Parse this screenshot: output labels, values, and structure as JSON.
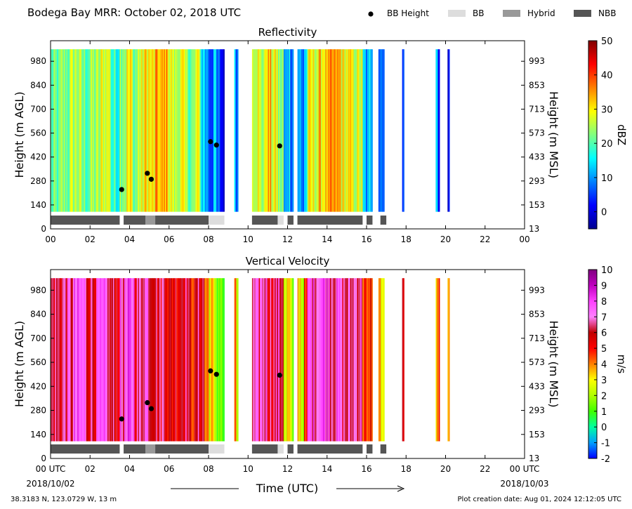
{
  "figure": {
    "title": "Bodega Bay MRR:  October 02, 2018 UTC",
    "legend": [
      {
        "label": "BB Height",
        "kind": "dot",
        "color": "#000000"
      },
      {
        "label": "BB",
        "kind": "box",
        "color": "#dddddd"
      },
      {
        "label": "Hybrid",
        "kind": "box",
        "color": "#999999"
      },
      {
        "label": "NBB",
        "kind": "box",
        "color": "#555555"
      }
    ],
    "xlabel": "Time (UTC)",
    "start_date": "2018/10/02",
    "end_date": "2018/10/03",
    "location": "38.3183 N, 123.0729 W, 13 m",
    "creation": "Plot creation date: Aug 01, 2024 12:12:05 UTC"
  },
  "chart_data": [
    {
      "type": "heatmap",
      "title": "Reflectivity",
      "ylabel": "Height (m AGL)",
      "ylabel_right": "Height (m MSL)",
      "xlim": [
        0,
        24
      ],
      "ylim": [
        0,
        1100
      ],
      "x_ticks": [
        "00",
        "02",
        "04",
        "06",
        "08",
        "10",
        "12",
        "14",
        "16",
        "18",
        "20",
        "22",
        "00"
      ],
      "y_ticks": [
        0,
        140,
        280,
        420,
        560,
        700,
        840,
        980
      ],
      "y_ticks_right": [
        "13",
        "153",
        "293",
        "433",
        "573",
        "713",
        "853",
        "993"
      ],
      "colorbar": {
        "label": "dBZ",
        "range": [
          -5,
          50
        ],
        "ticks": [
          "0",
          "10",
          "20",
          "30",
          "40",
          "50"
        ],
        "tick_values": [
          0,
          10,
          20,
          30,
          40,
          50
        ],
        "colors": [
          "#00008f",
          "#0000ff",
          "#0080ff",
          "#00ffff",
          "#80ff80",
          "#ffff00",
          "#ff8000",
          "#ff0000",
          "#800000"
        ]
      },
      "data_segments": [
        {
          "start": 0.0,
          "end": 3.5,
          "levels": [
            0.45,
            0.5,
            0.55,
            0.48,
            0.52,
            0.6,
            0.42
          ]
        },
        {
          "start": 3.5,
          "end": 5.0,
          "levels": [
            0.55,
            0.62,
            0.5,
            0.58,
            0.65
          ]
        },
        {
          "start": 5.0,
          "end": 6.2,
          "levels": [
            0.62,
            0.7,
            0.66,
            0.72,
            0.6
          ]
        },
        {
          "start": 6.2,
          "end": 7.6,
          "levels": [
            0.55,
            0.6,
            0.52,
            0.48,
            0.58
          ]
        },
        {
          "start": 7.6,
          "end": 8.8,
          "levels": [
            0.35,
            0.28,
            0.22,
            0.3,
            0.18,
            0.12
          ]
        },
        {
          "start": 9.3,
          "end": 9.5,
          "levels": [
            0.3,
            0.25
          ]
        },
        {
          "start": 10.2,
          "end": 11.8,
          "levels": [
            0.62,
            0.55,
            0.68,
            0.6,
            0.5
          ]
        },
        {
          "start": 11.8,
          "end": 12.3,
          "levels": [
            0.25,
            0.35,
            0.28
          ]
        },
        {
          "start": 12.5,
          "end": 13.0,
          "levels": [
            0.3,
            0.22,
            0.35
          ]
        },
        {
          "start": 13.0,
          "end": 15.8,
          "levels": [
            0.6,
            0.66,
            0.7,
            0.62,
            0.58
          ]
        },
        {
          "start": 15.8,
          "end": 16.3,
          "levels": [
            0.3,
            0.25,
            0.35
          ]
        },
        {
          "start": 16.6,
          "end": 16.9,
          "levels": [
            0.28,
            0.22
          ]
        },
        {
          "start": 17.8,
          "end": 17.9,
          "levels": [
            0.25
          ]
        },
        {
          "start": 19.5,
          "end": 19.7,
          "levels": [
            0.3,
            0.2
          ]
        },
        {
          "start": 20.1,
          "end": 20.2,
          "levels": [
            0.1
          ]
        }
      ],
      "bb_points": [
        {
          "x": 3.6,
          "y": 230
        },
        {
          "x": 4.9,
          "y": 325
        },
        {
          "x": 5.1,
          "y": 290
        },
        {
          "x": 8.1,
          "y": 510
        },
        {
          "x": 8.4,
          "y": 490
        },
        {
          "x": 11.6,
          "y": 485
        }
      ],
      "bb_bars": [
        {
          "start": 0.0,
          "end": 3.5,
          "type": "NBB"
        },
        {
          "start": 3.7,
          "end": 4.8,
          "type": "NBB"
        },
        {
          "start": 4.8,
          "end": 5.3,
          "type": "Hybrid"
        },
        {
          "start": 5.3,
          "end": 8.0,
          "type": "NBB"
        },
        {
          "start": 8.0,
          "end": 8.8,
          "type": "BB"
        },
        {
          "start": 10.2,
          "end": 11.5,
          "type": "NBB"
        },
        {
          "start": 11.5,
          "end": 11.8,
          "type": "BB"
        },
        {
          "start": 12.0,
          "end": 12.3,
          "type": "NBB"
        },
        {
          "start": 12.5,
          "end": 15.8,
          "type": "NBB"
        },
        {
          "start": 16.0,
          "end": 16.3,
          "type": "NBB"
        },
        {
          "start": 16.7,
          "end": 17.0,
          "type": "NBB"
        }
      ]
    },
    {
      "type": "heatmap",
      "title": "Vertical Velocity",
      "ylabel": "Height (m AGL)",
      "ylabel_right": "Height (m MSL)",
      "xlim": [
        0,
        24
      ],
      "ylim": [
        0,
        1100
      ],
      "x_ticks": [
        "00 UTC",
        "02",
        "04",
        "06",
        "08",
        "10",
        "12",
        "14",
        "16",
        "18",
        "20",
        "22",
        "00 UTC"
      ],
      "y_ticks": [
        0,
        140,
        280,
        420,
        560,
        700,
        840,
        980
      ],
      "y_ticks_right": [
        "13",
        "153",
        "293",
        "433",
        "573",
        "713",
        "853",
        "993"
      ],
      "colorbar": {
        "label": "m/s",
        "range": [
          -2,
          10
        ],
        "ticks": [
          "-2",
          "-1",
          "0",
          "1",
          "2",
          "3",
          "4",
          "5",
          "6",
          "7",
          "8",
          "9",
          "10"
        ],
        "tick_values": [
          -2,
          -1,
          0,
          1,
          2,
          3,
          4,
          5,
          6,
          7,
          8,
          9,
          10
        ],
        "colors": [
          "#0000ff",
          "#00a0ff",
          "#00ffa0",
          "#40ff00",
          "#b0ff00",
          "#ffff00",
          "#ff8000",
          "#ff0000",
          "#c00000",
          "#ff80ff",
          "#ff40ff",
          "#c000c0",
          "#800080"
        ]
      },
      "data_segments": [
        {
          "start": 0.0,
          "end": 3.5,
          "levels": [
            0.68,
            0.72,
            0.78,
            0.7,
            0.75,
            0.66
          ]
        },
        {
          "start": 3.5,
          "end": 5.0,
          "levels": [
            0.75,
            0.8,
            0.7,
            0.78
          ]
        },
        {
          "start": 5.0,
          "end": 6.2,
          "levels": [
            0.72,
            0.66,
            0.7,
            0.62
          ]
        },
        {
          "start": 6.2,
          "end": 7.8,
          "levels": [
            0.65,
            0.7,
            0.6,
            0.68
          ]
        },
        {
          "start": 7.8,
          "end": 8.8,
          "levels": [
            0.5,
            0.42,
            0.35,
            0.3,
            0.25
          ]
        },
        {
          "start": 9.3,
          "end": 9.5,
          "levels": [
            0.45,
            0.35
          ]
        },
        {
          "start": 10.2,
          "end": 11.8,
          "levels": [
            0.7,
            0.75,
            0.68,
            0.72
          ]
        },
        {
          "start": 11.8,
          "end": 12.3,
          "levels": [
            0.35,
            0.42,
            0.3
          ]
        },
        {
          "start": 12.5,
          "end": 13.0,
          "levels": [
            0.45,
            0.38,
            0.52
          ]
        },
        {
          "start": 13.0,
          "end": 15.8,
          "levels": [
            0.78,
            0.82,
            0.76,
            0.7,
            0.74
          ]
        },
        {
          "start": 15.8,
          "end": 16.3,
          "levels": [
            0.55,
            0.48,
            0.6
          ]
        },
        {
          "start": 16.6,
          "end": 16.9,
          "levels": [
            0.45,
            0.4
          ]
        },
        {
          "start": 17.8,
          "end": 17.9,
          "levels": [
            0.6
          ]
        },
        {
          "start": 19.5,
          "end": 19.7,
          "levels": [
            0.45,
            0.52
          ]
        },
        {
          "start": 20.1,
          "end": 20.2,
          "levels": [
            0.42
          ]
        }
      ],
      "bb_points": [
        {
          "x": 3.6,
          "y": 230
        },
        {
          "x": 4.9,
          "y": 325
        },
        {
          "x": 5.1,
          "y": 290
        },
        {
          "x": 8.1,
          "y": 510
        },
        {
          "x": 8.4,
          "y": 490
        },
        {
          "x": 11.6,
          "y": 485
        }
      ],
      "bb_bars": [
        {
          "start": 0.0,
          "end": 3.5,
          "type": "NBB"
        },
        {
          "start": 3.7,
          "end": 4.8,
          "type": "NBB"
        },
        {
          "start": 4.8,
          "end": 5.3,
          "type": "Hybrid"
        },
        {
          "start": 5.3,
          "end": 8.0,
          "type": "NBB"
        },
        {
          "start": 8.0,
          "end": 8.8,
          "type": "BB"
        },
        {
          "start": 10.2,
          "end": 11.5,
          "type": "NBB"
        },
        {
          "start": 11.5,
          "end": 11.8,
          "type": "BB"
        },
        {
          "start": 12.0,
          "end": 12.3,
          "type": "NBB"
        },
        {
          "start": 12.5,
          "end": 15.8,
          "type": "NBB"
        },
        {
          "start": 16.0,
          "end": 16.3,
          "type": "NBB"
        },
        {
          "start": 16.7,
          "end": 17.0,
          "type": "NBB"
        }
      ]
    }
  ]
}
